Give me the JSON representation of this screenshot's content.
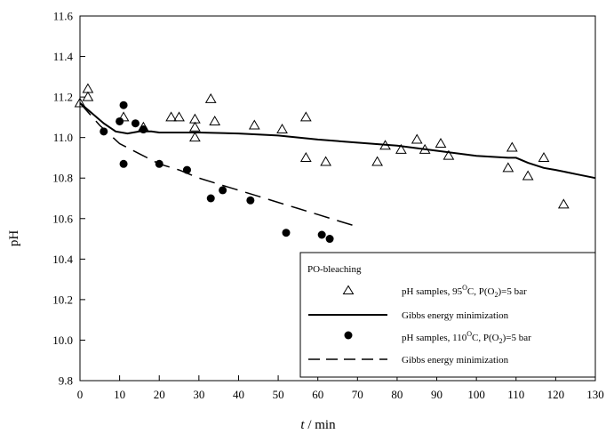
{
  "chart_data": {
    "type": "scatter",
    "title": "",
    "ylabel": "pH",
    "xlabel": {
      "var": "t",
      "unit": " / min"
    },
    "xlim": [
      0,
      130
    ],
    "ylim": [
      9.8,
      11.6
    ],
    "x_ticks": [
      0,
      10,
      20,
      30,
      40,
      50,
      60,
      70,
      80,
      90,
      100,
      110,
      120,
      130
    ],
    "y_ticks": [
      9.8,
      10.0,
      10.2,
      10.4,
      10.6,
      10.8,
      11.0,
      11.2,
      11.4,
      11.6
    ],
    "grid": false,
    "legend": {
      "placement": "bottom-right",
      "title": "PO-bleaching",
      "entries": [
        {
          "marker": "open-triangle",
          "prefix": "pH samples, 95",
          "sup": "O",
          "mid": "C, P(O",
          "sub": "2",
          "suffix": ")=5 bar"
        },
        {
          "marker": "solid-line",
          "prefix": "Gibbs energy  minimization"
        },
        {
          "marker": "filled-circle",
          "prefix": "pH samples, 110",
          "sup": "O",
          "mid": "C, P(O",
          "sub": "2",
          "suffix": ")=5 bar"
        },
        {
          "marker": "dashed-line",
          "prefix": "Gibbs energy  minimization"
        }
      ]
    },
    "series": [
      {
        "name": "pH samples, 95 °C, P(O2)=5 bar",
        "kind": "scatter",
        "marker": "triangle-open",
        "points": [
          [
            0,
            11.17
          ],
          [
            2,
            11.24
          ],
          [
            2,
            11.2
          ],
          [
            11,
            11.1
          ],
          [
            16,
            11.05
          ],
          [
            23,
            11.1
          ],
          [
            25,
            11.1
          ],
          [
            29,
            11.09
          ],
          [
            29,
            11.05
          ],
          [
            29,
            11.0
          ],
          [
            33,
            11.19
          ],
          [
            34,
            11.08
          ],
          [
            44,
            11.06
          ],
          [
            51,
            11.04
          ],
          [
            57,
            11.1
          ],
          [
            57,
            10.9
          ],
          [
            62,
            10.88
          ],
          [
            75,
            10.88
          ],
          [
            77,
            10.96
          ],
          [
            81,
            10.94
          ],
          [
            85,
            10.99
          ],
          [
            87,
            10.94
          ],
          [
            91,
            10.97
          ],
          [
            93,
            10.91
          ],
          [
            108,
            10.85
          ],
          [
            109,
            10.95
          ],
          [
            113,
            10.81
          ],
          [
            117,
            10.9
          ],
          [
            122,
            10.67
          ]
        ]
      },
      {
        "name": "Gibbs energy minimization (95 °C)",
        "kind": "line",
        "style": "solid",
        "points": [
          [
            0,
            11.17
          ],
          [
            3,
            11.12
          ],
          [
            6,
            11.07
          ],
          [
            9,
            11.03
          ],
          [
            12,
            11.02
          ],
          [
            15,
            11.03
          ],
          [
            18,
            11.03
          ],
          [
            20,
            11.025
          ],
          [
            30,
            11.025
          ],
          [
            40,
            11.02
          ],
          [
            50,
            11.01
          ],
          [
            60,
            10.99
          ],
          [
            70,
            10.975
          ],
          [
            80,
            10.96
          ],
          [
            90,
            10.935
          ],
          [
            100,
            10.91
          ],
          [
            108,
            10.9
          ],
          [
            110,
            10.9
          ],
          [
            113,
            10.875
          ],
          [
            117,
            10.85
          ],
          [
            120,
            10.84
          ],
          [
            125,
            10.82
          ],
          [
            130,
            10.8
          ]
        ]
      },
      {
        "name": "pH samples, 110 °C, P(O2)=5 bar",
        "kind": "scatter",
        "marker": "circle-filled",
        "points": [
          [
            6,
            11.03
          ],
          [
            10,
            11.08
          ],
          [
            11,
            11.16
          ],
          [
            11,
            10.87
          ],
          [
            14,
            11.07
          ],
          [
            16,
            11.04
          ],
          [
            20,
            10.87
          ],
          [
            27,
            10.84
          ],
          [
            33,
            10.7
          ],
          [
            36,
            10.74
          ],
          [
            43,
            10.69
          ],
          [
            52,
            10.53
          ],
          [
            61,
            10.52
          ],
          [
            63,
            10.5
          ]
        ]
      },
      {
        "name": "Gibbs energy minimization (110 °C)",
        "kind": "line",
        "style": "dashed",
        "points": [
          [
            0,
            11.17
          ],
          [
            5,
            11.06
          ],
          [
            10,
            10.97
          ],
          [
            15,
            10.92
          ],
          [
            20,
            10.87
          ],
          [
            25,
            10.84
          ],
          [
            30,
            10.8
          ],
          [
            35,
            10.77
          ],
          [
            40,
            10.74
          ],
          [
            45,
            10.71
          ],
          [
            50,
            10.68
          ],
          [
            55,
            10.65
          ],
          [
            60,
            10.62
          ],
          [
            65,
            10.59
          ],
          [
            70,
            10.56
          ]
        ]
      }
    ]
  }
}
